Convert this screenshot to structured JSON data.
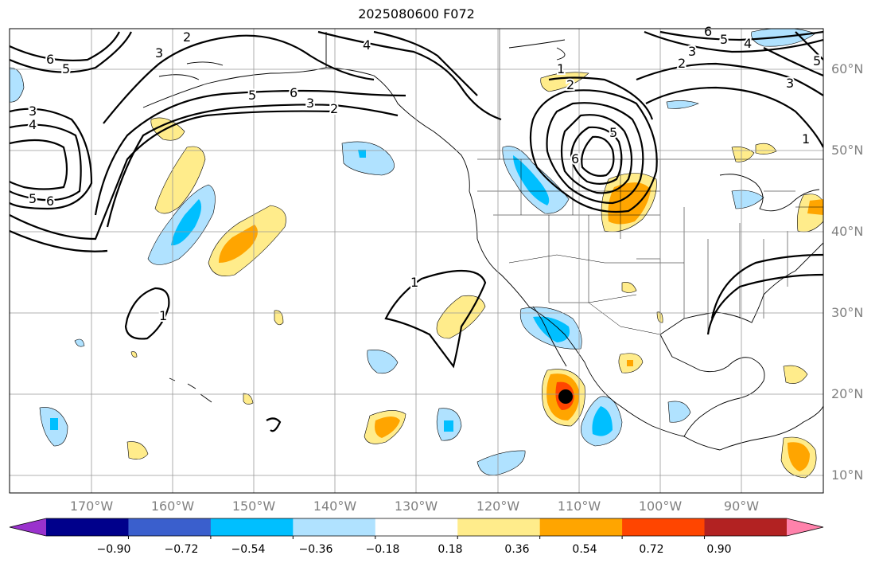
{
  "title": "2025080600 F072",
  "lat_labels": [
    "60°N",
    "50°N",
    "40°N",
    "30°N",
    "20°N",
    "10°N"
  ],
  "lon_labels": [
    "170°W",
    "160°W",
    "150°W",
    "140°W",
    "130°W",
    "120°W",
    "110°W",
    "100°W",
    "90°W"
  ],
  "colorbar": {
    "tick_labels": [
      "−0.90",
      "−0.72",
      "−0.54",
      "−0.36",
      "−0.18",
      "0.18",
      "0.36",
      "0.54",
      "0.72",
      "0.90"
    ],
    "colors": [
      "#9a32cd",
      "#00008b",
      "#3a5fcd",
      "#00bfff",
      "#b0e2ff",
      "#ffffff",
      "#ffec8b",
      "#ffa500",
      "#ff4500",
      "#b22222",
      "#ff82ab"
    ]
  },
  "contour_labels": [
    "1",
    "2",
    "3",
    "4",
    "5",
    "6"
  ]
}
